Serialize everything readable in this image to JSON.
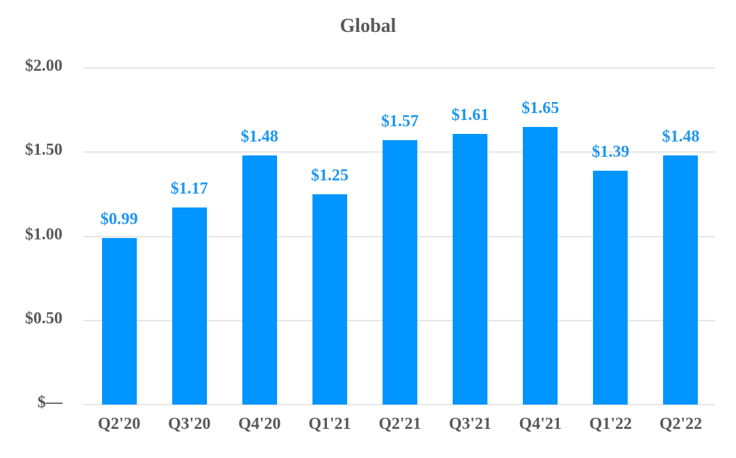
{
  "chart_data": {
    "type": "bar",
    "title": "Global",
    "xlabel": "",
    "ylabel": "",
    "categories": [
      "Q2'20",
      "Q3'20",
      "Q4'20",
      "Q1'21",
      "Q2'21",
      "Q3'21",
      "Q4'21",
      "Q1'22",
      "Q2'22"
    ],
    "values": [
      0.99,
      1.17,
      1.48,
      1.25,
      1.57,
      1.61,
      1.65,
      1.39,
      1.48
    ],
    "data_labels": [
      "$0.99",
      "$1.17",
      "$1.48",
      "$1.25",
      "$1.57",
      "$1.61",
      "$1.65",
      "$1.39",
      "$1.48"
    ],
    "ylim": [
      0,
      2.0
    ],
    "yticks": [
      0,
      0.5,
      1.0,
      1.5,
      2.0
    ],
    "ytick_labels": [
      "$—",
      "$0.50",
      "$1.00",
      "$1.50",
      "$2.00"
    ],
    "grid": true,
    "legend": null,
    "colors": {
      "bar": "#0095ff",
      "data_label": "#1e96f0",
      "axis_text": "#595959",
      "grid": "#e6e6e6"
    }
  }
}
